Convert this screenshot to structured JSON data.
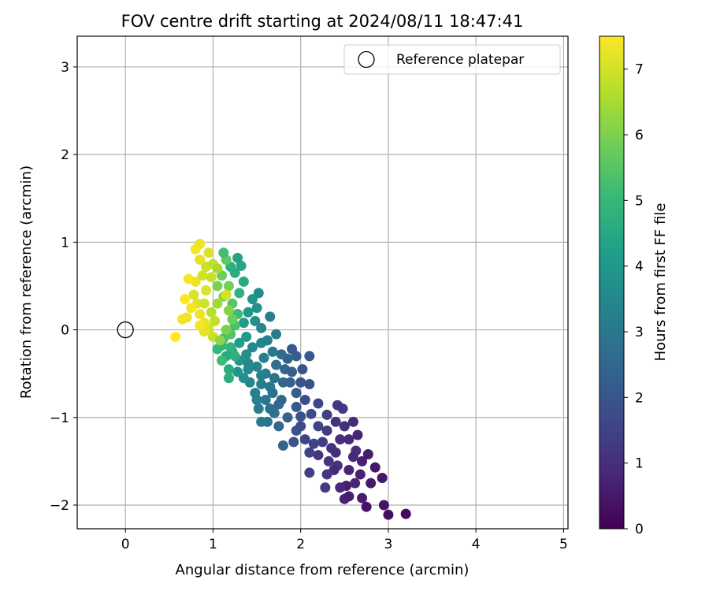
{
  "chart_data": {
    "type": "scatter",
    "title": "FOV centre drift starting at 2024/08/11 18:47:41",
    "xlabel": "Angular distance from reference (arcmin)",
    "ylabel": "Rotation from reference (arcmin)",
    "xlim": [
      -0.55,
      5.05
    ],
    "ylim": [
      -2.27,
      3.35
    ],
    "xticks": [
      0,
      1,
      2,
      3,
      4,
      5
    ],
    "yticks": [
      -2,
      -1,
      0,
      1,
      2,
      3
    ],
    "xtick_labels": [
      "0",
      "1",
      "2",
      "3",
      "4",
      "5"
    ],
    "ytick_labels": [
      "−2",
      "−1",
      "0",
      "1",
      "2",
      "3"
    ],
    "grid": true,
    "legend": {
      "position": "top-right",
      "entries": [
        {
          "label": "Reference platepar",
          "marker": "open-circle"
        }
      ]
    },
    "reference_point": {
      "x": 0,
      "y": 0
    },
    "colorbar": {
      "label": "Hours from first FF file",
      "range": [
        0,
        7.5
      ],
      "ticks": [
        0,
        1,
        2,
        3,
        4,
        5,
        6,
        7
      ],
      "tick_labels": [
        "0",
        "1",
        "2",
        "3",
        "4",
        "5",
        "6",
        "7"
      ],
      "colormap": "viridis"
    },
    "colormap_stops": [
      "#440154",
      "#482878",
      "#3e4989",
      "#31688e",
      "#26828e",
      "#1f9e89",
      "#35b779",
      "#6ece58",
      "#b5de2b",
      "#fde725"
    ],
    "marker_color_reference": "#000000",
    "series": [
      {
        "points": [
          {
            "x": 3.2,
            "y": -2.1,
            "t": 0.2
          },
          {
            "x": 3.0,
            "y": -2.11,
            "t": 0.3
          },
          {
            "x": 2.95,
            "y": -2.0,
            "t": 0.4
          },
          {
            "x": 2.75,
            "y": -2.02,
            "t": 0.4
          },
          {
            "x": 2.93,
            "y": -1.69,
            "t": 0.5
          },
          {
            "x": 2.7,
            "y": -1.92,
            "t": 0.6
          },
          {
            "x": 2.85,
            "y": -1.57,
            "t": 0.5
          },
          {
            "x": 2.5,
            "y": -1.93,
            "t": 0.7
          },
          {
            "x": 2.52,
            "y": -1.78,
            "t": 0.6
          },
          {
            "x": 2.62,
            "y": -1.75,
            "t": 0.8
          },
          {
            "x": 2.45,
            "y": -1.8,
            "t": 0.9
          },
          {
            "x": 2.7,
            "y": -1.5,
            "t": 0.7
          },
          {
            "x": 2.77,
            "y": -1.42,
            "t": 0.6
          },
          {
            "x": 2.63,
            "y": -1.38,
            "t": 1.0
          },
          {
            "x": 2.55,
            "y": -1.6,
            "t": 0.8
          },
          {
            "x": 2.42,
            "y": -1.55,
            "t": 1.1
          },
          {
            "x": 2.38,
            "y": -1.6,
            "t": 0.9
          },
          {
            "x": 2.32,
            "y": -1.5,
            "t": 1.2
          },
          {
            "x": 2.28,
            "y": -1.8,
            "t": 1.3
          },
          {
            "x": 2.1,
            "y": -1.63,
            "t": 1.4
          },
          {
            "x": 2.2,
            "y": -1.43,
            "t": 1.2
          },
          {
            "x": 2.15,
            "y": -1.3,
            "t": 1.5
          },
          {
            "x": 2.05,
            "y": -1.25,
            "t": 1.6
          },
          {
            "x": 2.25,
            "y": -1.28,
            "t": 1.4
          },
          {
            "x": 2.35,
            "y": -1.35,
            "t": 1.1
          },
          {
            "x": 2.45,
            "y": -1.25,
            "t": 1.0
          },
          {
            "x": 2.5,
            "y": -1.1,
            "t": 1.0
          },
          {
            "x": 2.55,
            "y": -1.25,
            "t": 0.9
          },
          {
            "x": 2.65,
            "y": -1.2,
            "t": 0.8
          },
          {
            "x": 2.6,
            "y": -1.05,
            "t": 0.9
          },
          {
            "x": 2.4,
            "y": -1.05,
            "t": 1.1
          },
          {
            "x": 2.48,
            "y": -0.9,
            "t": 1.3
          },
          {
            "x": 2.42,
            "y": -0.86,
            "t": 1.2
          },
          {
            "x": 2.3,
            "y": -0.97,
            "t": 1.4
          },
          {
            "x": 2.3,
            "y": -1.15,
            "t": 1.3
          },
          {
            "x": 2.2,
            "y": -1.1,
            "t": 1.5
          },
          {
            "x": 2.12,
            "y": -0.96,
            "t": 1.7
          },
          {
            "x": 2.2,
            "y": -0.84,
            "t": 1.6
          },
          {
            "x": 2.05,
            "y": -0.8,
            "t": 1.8
          },
          {
            "x": 2.0,
            "y": -0.99,
            "t": 1.9
          },
          {
            "x": 1.95,
            "y": -1.15,
            "t": 2.0
          },
          {
            "x": 1.8,
            "y": -1.32,
            "t": 2.4
          },
          {
            "x": 1.92,
            "y": -1.28,
            "t": 2.0
          },
          {
            "x": 2.0,
            "y": -1.1,
            "t": 1.8
          },
          {
            "x": 2.1,
            "y": -0.62,
            "t": 1.9
          },
          {
            "x": 2.02,
            "y": -0.45,
            "t": 2.0
          },
          {
            "x": 2.1,
            "y": -0.3,
            "t": 2.1
          },
          {
            "x": 1.95,
            "y": -0.3,
            "t": 2.2
          },
          {
            "x": 1.9,
            "y": -0.22,
            "t": 2.1
          },
          {
            "x": 1.85,
            "y": -0.33,
            "t": 2.3
          },
          {
            "x": 1.82,
            "y": -0.45,
            "t": 2.4
          },
          {
            "x": 1.88,
            "y": -0.6,
            "t": 2.3
          },
          {
            "x": 1.95,
            "y": -0.72,
            "t": 2.2
          },
          {
            "x": 1.78,
            "y": -0.8,
            "t": 2.6
          },
          {
            "x": 1.7,
            "y": -0.95,
            "t": 2.8
          },
          {
            "x": 1.62,
            "y": -1.05,
            "t": 2.9
          },
          {
            "x": 1.55,
            "y": -1.05,
            "t": 3.0
          },
          {
            "x": 1.65,
            "y": -0.9,
            "t": 2.7
          },
          {
            "x": 1.75,
            "y": -0.85,
            "t": 2.5
          },
          {
            "x": 1.68,
            "y": -0.72,
            "t": 2.8
          },
          {
            "x": 1.6,
            "y": -0.8,
            "t": 3.0
          },
          {
            "x": 1.5,
            "y": -0.8,
            "t": 3.2
          },
          {
            "x": 1.52,
            "y": -0.9,
            "t": 3.1
          },
          {
            "x": 1.48,
            "y": -0.72,
            "t": 3.3
          },
          {
            "x": 1.42,
            "y": -0.6,
            "t": 3.4
          },
          {
            "x": 1.55,
            "y": -0.62,
            "t": 3.2
          },
          {
            "x": 1.6,
            "y": -0.5,
            "t": 3.1
          },
          {
            "x": 1.7,
            "y": -0.55,
            "t": 2.9
          },
          {
            "x": 1.72,
            "y": -0.4,
            "t": 2.7
          },
          {
            "x": 1.78,
            "y": -0.28,
            "t": 2.6
          },
          {
            "x": 1.68,
            "y": -0.25,
            "t": 3.0
          },
          {
            "x": 1.58,
            "y": -0.32,
            "t": 3.2
          },
          {
            "x": 1.5,
            "y": -0.42,
            "t": 3.4
          },
          {
            "x": 1.4,
            "y": -0.45,
            "t": 3.6
          },
          {
            "x": 1.35,
            "y": -0.55,
            "t": 3.7
          },
          {
            "x": 1.28,
            "y": -0.48,
            "t": 3.9
          },
          {
            "x": 1.3,
            "y": -0.35,
            "t": 3.8
          },
          {
            "x": 1.38,
            "y": -0.28,
            "t": 3.7
          },
          {
            "x": 1.45,
            "y": -0.2,
            "t": 3.6
          },
          {
            "x": 1.55,
            "y": -0.15,
            "t": 3.4
          },
          {
            "x": 1.62,
            "y": -0.12,
            "t": 3.3
          },
          {
            "x": 1.72,
            "y": -0.05,
            "t": 3.1
          },
          {
            "x": 1.65,
            "y": 0.15,
            "t": 3.2
          },
          {
            "x": 1.55,
            "y": 0.02,
            "t": 3.5
          },
          {
            "x": 1.48,
            "y": 0.1,
            "t": 3.7
          },
          {
            "x": 1.5,
            "y": 0.25,
            "t": 3.8
          },
          {
            "x": 1.45,
            "y": 0.35,
            "t": 3.9
          },
          {
            "x": 1.52,
            "y": 0.42,
            "t": 3.6
          },
          {
            "x": 1.4,
            "y": 0.2,
            "t": 4.0
          },
          {
            "x": 1.35,
            "y": 0.08,
            "t": 4.1
          },
          {
            "x": 1.38,
            "y": -0.08,
            "t": 4.0
          },
          {
            "x": 1.3,
            "y": -0.15,
            "t": 4.2
          },
          {
            "x": 1.22,
            "y": -0.25,
            "t": 4.4
          },
          {
            "x": 1.15,
            "y": -0.3,
            "t": 4.5
          },
          {
            "x": 1.18,
            "y": -0.45,
            "t": 4.6
          },
          {
            "x": 1.18,
            "y": -0.55,
            "t": 4.7
          },
          {
            "x": 1.25,
            "y": -0.3,
            "t": 4.8
          },
          {
            "x": 1.1,
            "y": -0.18,
            "t": 4.9
          },
          {
            "x": 1.05,
            "y": -0.22,
            "t": 5.0
          },
          {
            "x": 1.12,
            "y": -0.1,
            "t": 5.2
          },
          {
            "x": 1.2,
            "y": -0.05,
            "t": 5.4
          },
          {
            "x": 1.25,
            "y": 0.05,
            "t": 5.3
          },
          {
            "x": 1.28,
            "y": 0.18,
            "t": 5.1
          },
          {
            "x": 1.22,
            "y": 0.3,
            "t": 5.5
          },
          {
            "x": 1.3,
            "y": 0.42,
            "t": 4.8
          },
          {
            "x": 1.35,
            "y": 0.55,
            "t": 4.5
          },
          {
            "x": 1.25,
            "y": 0.65,
            "t": 4.6
          },
          {
            "x": 1.2,
            "y": 0.72,
            "t": 4.7
          },
          {
            "x": 1.32,
            "y": 0.73,
            "t": 4.4
          },
          {
            "x": 1.28,
            "y": 0.82,
            "t": 4.3
          },
          {
            "x": 1.15,
            "y": 0.8,
            "t": 5.6
          },
          {
            "x": 1.1,
            "y": 0.62,
            "t": 5.8
          },
          {
            "x": 1.05,
            "y": 0.5,
            "t": 6.0
          },
          {
            "x": 1.18,
            "y": 0.5,
            "t": 5.9
          },
          {
            "x": 1.12,
            "y": 0.38,
            "t": 6.2
          },
          {
            "x": 1.05,
            "y": 0.3,
            "t": 6.4
          },
          {
            "x": 0.98,
            "y": 0.2,
            "t": 6.7
          },
          {
            "x": 1.02,
            "y": 0.1,
            "t": 6.8
          },
          {
            "x": 0.95,
            "y": 0.02,
            "t": 7.0
          },
          {
            "x": 0.9,
            "y": 0.08,
            "t": 7.2
          },
          {
            "x": 0.85,
            "y": 0.18,
            "t": 7.3
          },
          {
            "x": 0.82,
            "y": 0.3,
            "t": 7.2
          },
          {
            "x": 0.78,
            "y": 0.4,
            "t": 7.1
          },
          {
            "x": 0.8,
            "y": 0.55,
            "t": 7.3
          },
          {
            "x": 0.72,
            "y": 0.58,
            "t": 7.4
          },
          {
            "x": 0.88,
            "y": 0.62,
            "t": 7.0
          },
          {
            "x": 0.92,
            "y": 0.72,
            "t": 6.9
          },
          {
            "x": 0.85,
            "y": 0.8,
            "t": 7.2
          },
          {
            "x": 0.8,
            "y": 0.92,
            "t": 7.4
          },
          {
            "x": 0.85,
            "y": 0.98,
            "t": 7.3
          },
          {
            "x": 0.95,
            "y": 0.88,
            "t": 7.1
          },
          {
            "x": 1.0,
            "y": 0.75,
            "t": 6.8
          },
          {
            "x": 0.98,
            "y": 0.6,
            "t": 6.9
          },
          {
            "x": 0.92,
            "y": 0.45,
            "t": 7.1
          },
          {
            "x": 0.9,
            "y": 0.3,
            "t": 7.0
          },
          {
            "x": 0.75,
            "y": 0.25,
            "t": 7.4
          },
          {
            "x": 0.68,
            "y": 0.35,
            "t": 7.5
          },
          {
            "x": 0.65,
            "y": 0.12,
            "t": 7.4
          },
          {
            "x": 0.7,
            "y": 0.14,
            "t": 7.3
          },
          {
            "x": 0.57,
            "y": -0.08,
            "t": 7.5
          },
          {
            "x": 0.9,
            "y": -0.02,
            "t": 7.2
          },
          {
            "x": 0.85,
            "y": 0.05,
            "t": 7.4
          },
          {
            "x": 1.0,
            "y": -0.08,
            "t": 6.9
          },
          {
            "x": 1.08,
            "y": -0.12,
            "t": 6.2
          },
          {
            "x": 1.15,
            "y": 0.0,
            "t": 6.0
          },
          {
            "x": 1.22,
            "y": 0.12,
            "t": 5.8
          },
          {
            "x": 1.18,
            "y": 0.22,
            "t": 6.1
          },
          {
            "x": 1.15,
            "y": 0.4,
            "t": 7.0
          },
          {
            "x": 1.05,
            "y": 0.7,
            "t": 6.5
          },
          {
            "x": 1.12,
            "y": 0.88,
            "t": 5.2
          },
          {
            "x": 1.1,
            "y": -0.35,
            "t": 5.1
          },
          {
            "x": 1.2,
            "y": -0.2,
            "t": 4.9
          },
          {
            "x": 1.4,
            "y": -0.38,
            "t": 3.5
          },
          {
            "x": 1.55,
            "y": -0.52,
            "t": 3.3
          },
          {
            "x": 1.65,
            "y": -0.65,
            "t": 3.0
          },
          {
            "x": 1.8,
            "y": -0.6,
            "t": 2.5
          },
          {
            "x": 1.9,
            "y": -0.48,
            "t": 2.3
          },
          {
            "x": 2.0,
            "y": -0.6,
            "t": 2.0
          },
          {
            "x": 1.95,
            "y": -0.88,
            "t": 2.1
          },
          {
            "x": 1.85,
            "y": -1.0,
            "t": 2.3
          },
          {
            "x": 1.75,
            "y": -1.1,
            "t": 2.5
          },
          {
            "x": 2.1,
            "y": -1.4,
            "t": 1.5
          },
          {
            "x": 2.3,
            "y": -1.65,
            "t": 1.2
          },
          {
            "x": 2.6,
            "y": -1.45,
            "t": 0.9
          },
          {
            "x": 2.8,
            "y": -1.75,
            "t": 0.5
          },
          {
            "x": 2.55,
            "y": -1.9,
            "t": 0.6
          },
          {
            "x": 2.68,
            "y": -1.65,
            "t": 0.7
          },
          {
            "x": 2.4,
            "y": -1.4,
            "t": 1.0
          }
        ]
      }
    ]
  }
}
